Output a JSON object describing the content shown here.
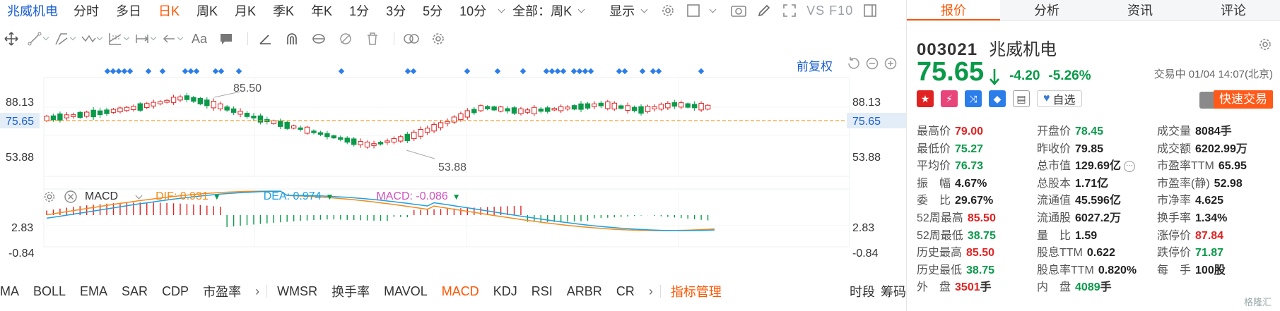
{
  "toolbar": {
    "stock_name": "兆威机电",
    "periods": [
      "分时",
      "多日",
      "日K",
      "周K",
      "月K",
      "季K",
      "年K",
      "1分",
      "3分",
      "5分",
      "10分"
    ],
    "active_period": "日K",
    "range_dropdown": "全部：周K",
    "display_label": "显示",
    "vs_f10": "VS F10"
  },
  "adjust_label": "前复权",
  "price_axis": {
    "left_labels": [
      "88.13",
      "75.65",
      "53.88"
    ],
    "right_labels": [
      "88.13",
      "75.65",
      "53.88"
    ],
    "high_annotation": "85.50",
    "low_annotation": "53.88",
    "current_line_color": "#f0a030"
  },
  "macd": {
    "label": "MACD",
    "dif_label": "DIF: 0.931",
    "dea_label": "DEA: 0.974",
    "macd_label": "MACD: -0.086",
    "axis_labels": [
      "2.83",
      "-0.84"
    ],
    "dif_color": "#f08c1e",
    "dea_color": "#1ea0e0",
    "macd_color": "#d050c0"
  },
  "indicators": {
    "items": [
      "MA",
      "BOLL",
      "EMA",
      "SAR",
      "CDP",
      "市盈率"
    ],
    "items2": [
      "WMSR",
      "换手率",
      "MAVOL",
      "MACD",
      "KDJ",
      "RSI",
      "ARBR",
      "CR"
    ],
    "active": "MACD",
    "manager": "指标管理",
    "right": [
      "时段",
      "筹码"
    ]
  },
  "quote": {
    "tabs": [
      "报价",
      "分析",
      "资讯",
      "评论"
    ],
    "code": "003021",
    "name": "兆威机电",
    "price": "75.65",
    "change": "-4.20",
    "change_pct": "-5.26%",
    "trade_time": "交易中 01/04 14:07(北京)",
    "watchlist": "自选",
    "quick_trade": "快速交易",
    "stats": [
      {
        "k": "最高价",
        "v": "79.00",
        "c": "red"
      },
      {
        "k": "开盘价",
        "v": "78.45",
        "c": "green"
      },
      {
        "k": "成交量",
        "v": "8084",
        "u": "手",
        "c": ""
      },
      {
        "k": "最低价",
        "v": "75.27",
        "c": "green"
      },
      {
        "k": "昨收价",
        "v": "79.85",
        "c": ""
      },
      {
        "k": "成交额",
        "v": "6202.99",
        "u": "万",
        "c": ""
      },
      {
        "k": "平均价",
        "v": "76.73",
        "c": "green"
      },
      {
        "k": "总市值",
        "v": "129.69亿",
        "c": "",
        "more": true
      },
      {
        "k": "市盈率TTM",
        "v": "65.95",
        "c": ""
      },
      {
        "k": "振　幅",
        "v": "4.67%",
        "c": ""
      },
      {
        "k": "总股本",
        "v": "1.71亿",
        "c": ""
      },
      {
        "k": "市盈率(静)",
        "v": "52.98",
        "c": ""
      },
      {
        "k": "委　比",
        "v": "29.67%",
        "c": ""
      },
      {
        "k": "流通值",
        "v": "45.596亿",
        "c": ""
      },
      {
        "k": "市净率",
        "v": "4.625",
        "c": ""
      },
      {
        "k": "52周最高",
        "v": "85.50",
        "c": "red"
      },
      {
        "k": "流通股",
        "v": "6027.2",
        "u": "万",
        "c": ""
      },
      {
        "k": "换手率",
        "v": "1.34%",
        "c": ""
      },
      {
        "k": "52周最低",
        "v": "38.75",
        "c": "green"
      },
      {
        "k": "量　比",
        "v": "1.59",
        "c": ""
      },
      {
        "k": "涨停价",
        "v": "87.84",
        "c": "red"
      },
      {
        "k": "历史最高",
        "v": "85.50",
        "c": "red"
      },
      {
        "k": "股息TTM",
        "v": "0.622",
        "c": ""
      },
      {
        "k": "跌停价",
        "v": "71.87",
        "c": "green"
      },
      {
        "k": "历史最低",
        "v": "38.75",
        "c": "green"
      },
      {
        "k": "股息率TTM",
        "v": "0.820%",
        "c": ""
      },
      {
        "k": "每　手",
        "v": "100股",
        "c": ""
      },
      {
        "k": "外　盘",
        "v": "3501",
        "u": "手",
        "c": "red"
      },
      {
        "k": "内　盘",
        "v": "4089",
        "u": "手",
        "c": "green"
      },
      {
        "k": "",
        "v": "",
        "c": ""
      }
    ],
    "watermark": "格隆汇"
  },
  "colors": {
    "up": "#e02222",
    "down": "#0a9a4a",
    "accent": "#ff5500",
    "link": "#1a5fd0"
  }
}
